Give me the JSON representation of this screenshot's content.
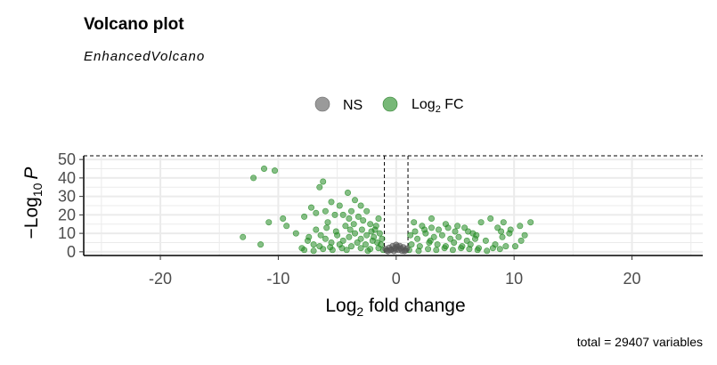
{
  "chart_data": {
    "type": "scatter",
    "title": "Volcano plot",
    "subtitle": "EnhancedVolcano",
    "caption": "total = 29407 variables",
    "xlabel": {
      "base": "Log",
      "sub": "2",
      "rest": " fold change"
    },
    "ylabel": {
      "prefix": "−Log",
      "sub": "10",
      "var": "P"
    },
    "xlim": [
      -26.5,
      26
    ],
    "ylim": [
      -2,
      52
    ],
    "x_ticks": [
      -20,
      -10,
      0,
      10,
      20
    ],
    "x_tick_labels": [
      "-20",
      "-10",
      "0",
      "10",
      "20"
    ],
    "y_ticks": [
      0,
      10,
      20,
      30,
      40,
      50
    ],
    "y_tick_labels": [
      "0",
      "10",
      "20",
      "30",
      "40",
      "50"
    ],
    "cutoffs": {
      "log2fc": [
        -1,
        1
      ],
      "pvalue_line": 52
    },
    "grid": true,
    "legend_position": "top",
    "legend": [
      {
        "name": "NS",
        "color": "#888888"
      },
      {
        "name": "Log",
        "sub": "2",
        "rest": " FC",
        "color": "#4aa04a"
      }
    ],
    "colors": {
      "ns": "#555555",
      "fc": "#228b22",
      "ns_legend": "#888888",
      "fc_legend": "#4aa04a"
    },
    "series": [
      {
        "name": "NS",
        "points": [
          [
            -0.9,
            1.5
          ],
          [
            -0.6,
            2.2
          ],
          [
            -0.3,
            3.1
          ],
          [
            0.0,
            3.8
          ],
          [
            0.3,
            3.2
          ],
          [
            0.6,
            2.5
          ],
          [
            0.9,
            1.7
          ],
          [
            -0.8,
            0.7
          ],
          [
            -0.4,
            1.2
          ],
          [
            0.2,
            1.0
          ],
          [
            0.5,
            0.5
          ],
          [
            0.8,
            0.9
          ],
          [
            -0.2,
            0.4
          ],
          [
            0.1,
            2.8
          ],
          [
            -0.5,
            0.9
          ],
          [
            0.4,
            1.8
          ],
          [
            -0.7,
            0.3
          ],
          [
            0.7,
            0.4
          ],
          [
            0.0,
            1.3
          ],
          [
            -0.1,
            2.0
          ]
        ]
      },
      {
        "name": "Log2 FC",
        "points": [
          [
            -11.2,
            45
          ],
          [
            -12.1,
            40
          ],
          [
            -10.3,
            44
          ],
          [
            -6.2,
            38
          ],
          [
            -6.5,
            35
          ],
          [
            -4.1,
            32
          ],
          [
            -3.5,
            28
          ],
          [
            -4.8,
            25
          ],
          [
            -5.5,
            27
          ],
          [
            -3.0,
            25
          ],
          [
            -2.5,
            22
          ],
          [
            -1.5,
            18
          ],
          [
            -13.0,
            8
          ],
          [
            -11.5,
            4
          ],
          [
            -10.8,
            16
          ],
          [
            -9.6,
            18
          ],
          [
            -9.3,
            14
          ],
          [
            -8.5,
            10
          ],
          [
            -7.8,
            19
          ],
          [
            -7.2,
            24
          ],
          [
            -6.8,
            21
          ],
          [
            -6.0,
            22
          ],
          [
            -5.8,
            16
          ],
          [
            -5.2,
            20
          ],
          [
            -4.5,
            20
          ],
          [
            -4.0,
            18
          ],
          [
            -3.8,
            22
          ],
          [
            -3.2,
            19
          ],
          [
            -2.8,
            17
          ],
          [
            -2.2,
            15
          ],
          [
            -1.8,
            12
          ],
          [
            -1.4,
            10
          ],
          [
            -1.2,
            7
          ],
          [
            -7.5,
            6
          ],
          [
            -7.0,
            4
          ],
          [
            -6.5,
            3
          ],
          [
            -6.0,
            7
          ],
          [
            -5.5,
            5
          ],
          [
            -5.0,
            9
          ],
          [
            -4.5,
            6
          ],
          [
            -4.0,
            8
          ],
          [
            -3.5,
            10
          ],
          [
            -3.0,
            7
          ],
          [
            -2.5,
            9
          ],
          [
            -2.0,
            6
          ],
          [
            -1.6,
            5
          ],
          [
            -1.3,
            4
          ],
          [
            -7.8,
            1
          ],
          [
            -7.0,
            0.5
          ],
          [
            -6.2,
            1.5
          ],
          [
            -5.4,
            1
          ],
          [
            -4.6,
            2
          ],
          [
            -3.8,
            3
          ],
          [
            -3.0,
            2
          ],
          [
            -2.2,
            1.5
          ],
          [
            -1.5,
            2
          ],
          [
            -1.1,
            1
          ],
          [
            -8.0,
            2
          ],
          [
            -6.8,
            12
          ],
          [
            -5.9,
            13
          ],
          [
            -5.1,
            11
          ],
          [
            -4.3,
            14
          ],
          [
            -3.6,
            15
          ],
          [
            -2.9,
            12
          ],
          [
            -2.1,
            11
          ],
          [
            -1.7,
            14
          ],
          [
            -6.4,
            9
          ],
          [
            -4.8,
            4
          ],
          [
            -3.3,
            5
          ],
          [
            -2.6,
            4
          ],
          [
            -1.9,
            8
          ],
          [
            -5.6,
            2.5
          ],
          [
            -4.2,
            1
          ],
          [
            -2.4,
            0.5
          ],
          [
            -7.4,
            8
          ],
          [
            -3.9,
            12
          ],
          [
            1.5,
            16
          ],
          [
            2.2,
            14
          ],
          [
            3.0,
            18
          ],
          [
            3.6,
            12
          ],
          [
            4.2,
            15
          ],
          [
            5.0,
            11
          ],
          [
            5.8,
            13
          ],
          [
            6.5,
            10
          ],
          [
            7.2,
            16
          ],
          [
            8.0,
            18
          ],
          [
            8.6,
            13
          ],
          [
            9.1,
            16
          ],
          [
            9.7,
            12
          ],
          [
            10.5,
            14
          ],
          [
            11.4,
            16
          ],
          [
            7.6,
            6
          ],
          [
            8.4,
            4
          ],
          [
            9.0,
            8
          ],
          [
            9.6,
            10
          ],
          [
            10.1,
            3
          ],
          [
            10.6,
            6
          ],
          [
            1.2,
            9
          ],
          [
            1.8,
            7
          ],
          [
            2.5,
            10
          ],
          [
            3.2,
            8
          ],
          [
            3.9,
            9
          ],
          [
            4.6,
            7
          ],
          [
            5.3,
            8
          ],
          [
            6.0,
            6
          ],
          [
            6.7,
            7
          ],
          [
            1.3,
            4
          ],
          [
            2.0,
            3
          ],
          [
            2.8,
            5
          ],
          [
            3.5,
            4
          ],
          [
            4.2,
            3
          ],
          [
            4.9,
            5
          ],
          [
            5.6,
            3
          ],
          [
            6.3,
            4
          ],
          [
            7.0,
            2
          ],
          [
            8.2,
            2
          ],
          [
            9.3,
            3
          ],
          [
            1.1,
            1
          ],
          [
            1.9,
            0.5
          ],
          [
            2.7,
            1.5
          ],
          [
            3.4,
            1
          ],
          [
            4.1,
            2
          ],
          [
            4.8,
            1
          ],
          [
            5.5,
            2
          ],
          [
            6.2,
            1.5
          ],
          [
            6.9,
            1
          ],
          [
            7.7,
            0.5
          ],
          [
            8.8,
            1.5
          ],
          [
            2.4,
            12
          ],
          [
            4.4,
            13
          ],
          [
            6.1,
            11
          ],
          [
            3.0,
            13
          ],
          [
            5.2,
            14
          ],
          [
            6.8,
            9
          ],
          [
            8.9,
            11
          ],
          [
            10.9,
            9
          ],
          [
            1.6,
            11
          ],
          [
            2.9,
            6
          ]
        ]
      }
    ]
  }
}
